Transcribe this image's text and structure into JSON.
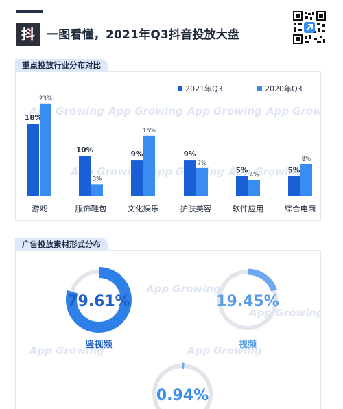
{
  "header": {
    "logo_glyph": "抖",
    "title": "一图看懂，2021年Q3抖音投放大盘"
  },
  "section1": {
    "title": "重点投放行业分布对比"
  },
  "section2": {
    "title": "广告投放素材形式分布"
  },
  "watermark_text": "App Growing",
  "colors": {
    "series_2021": "#1a5fd6",
    "series_2020": "#3a8df0",
    "donut_track": "#e2e5ec",
    "donut_primary": "#2f7fe8",
    "donut_secondary": "#6ea8f0"
  },
  "chart_data": [
    {
      "type": "bar",
      "categories": [
        "游戏",
        "服饰鞋包",
        "文化娱乐",
        "护肤美容",
        "软件应用",
        "综合电商"
      ],
      "series": [
        {
          "name": "2021年Q3",
          "values": [
            18,
            10,
            9,
            9,
            5,
            5
          ],
          "labels": [
            "18%",
            "10%",
            "9%",
            "9%",
            "5%",
            "5%"
          ]
        },
        {
          "name": "2020年Q3",
          "values": [
            23,
            3,
            15,
            7,
            4,
            8
          ],
          "labels": [
            "23%",
            "3%",
            "15%",
            "7%",
            "4%",
            "8%"
          ]
        }
      ],
      "ylim": [
        0,
        25
      ],
      "legend": "top-right",
      "grid": false
    },
    {
      "type": "pie",
      "style": "donut",
      "slices": [
        {
          "label": "竖视频",
          "value": 79.61,
          "value_label": "79.61%"
        },
        {
          "label": "视频",
          "value": 19.45,
          "value_label": "19.45%"
        },
        {
          "label": "",
          "value": 0.94,
          "value_label": "0.94%"
        }
      ]
    }
  ]
}
